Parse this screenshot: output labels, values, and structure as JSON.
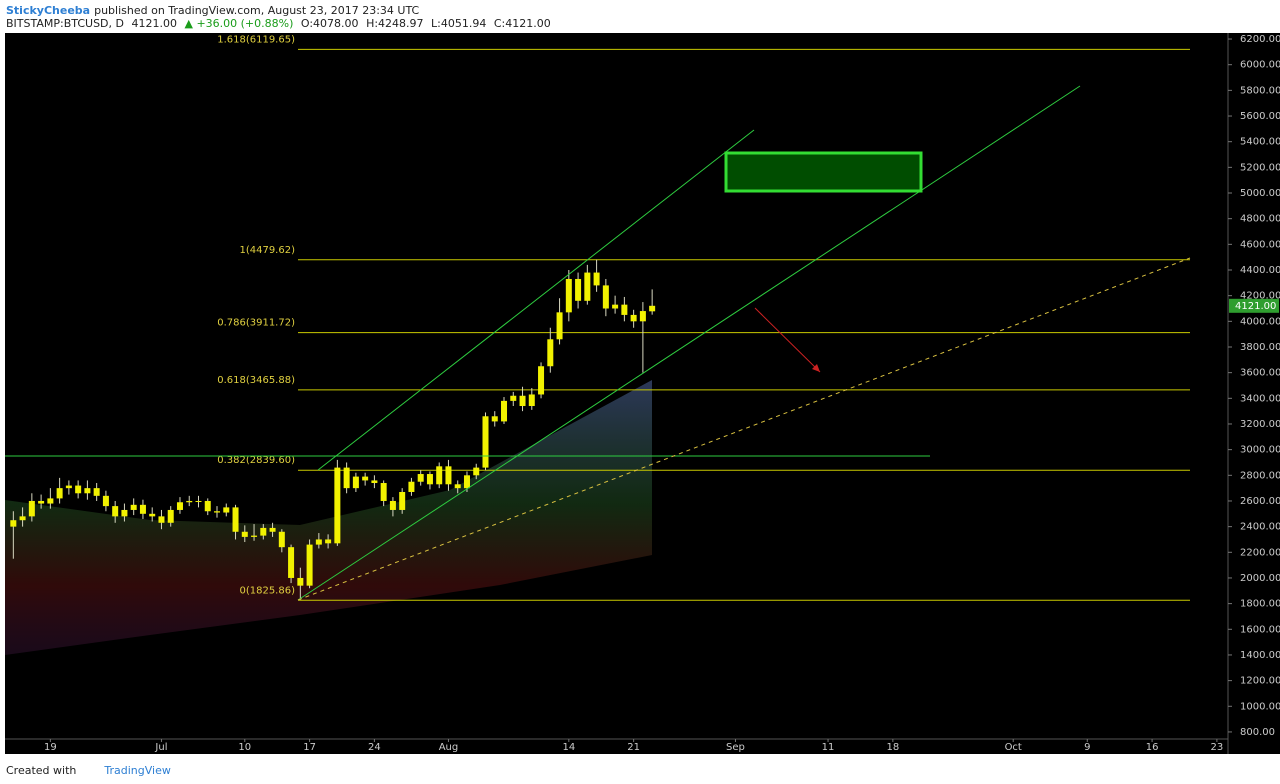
{
  "header": {
    "author": "StickyCheeba",
    "published": "published on TradingView.com, August 23, 2017 23:34 UTC",
    "symbol": "BITSTAMP:BTCUSD, D",
    "last": "4121.00",
    "change": "▲ +36.00 (+0.88%)",
    "ohlc": [
      "O:4078.00",
      "H:4248.97",
      "L:4051.94",
      "C:4121.00"
    ]
  },
  "footer": {
    "created": "Created with",
    "brand": "TradingView"
  },
  "chart_data": {
    "type": "candlestick",
    "color": "#f2f200",
    "x": [
      -4,
      -3,
      -2,
      -1,
      0,
      1,
      2,
      3,
      4,
      5,
      6,
      7,
      8,
      9,
      10,
      11,
      12,
      13,
      14,
      15,
      16,
      17,
      18,
      19,
      20,
      21,
      22,
      23,
      24,
      25,
      26,
      27,
      28,
      29,
      30,
      31,
      32,
      33,
      34,
      35,
      36,
      37,
      38,
      39,
      40,
      41,
      42,
      43,
      44,
      45,
      46,
      47,
      48,
      49,
      50,
      51,
      52,
      53,
      54,
      55,
      56,
      57,
      58,
      59,
      60,
      61,
      62,
      63,
      64,
      65
    ],
    "open": [
      2400,
      2450,
      2480,
      2600,
      2580,
      2620,
      2700,
      2720,
      2660,
      2700,
      2640,
      2560,
      2480,
      2530,
      2570,
      2500,
      2480,
      2430,
      2530,
      2590,
      2600,
      2600,
      2520,
      2510,
      2550,
      2360,
      2320,
      2330,
      2390,
      2360,
      2240,
      2000,
      1940,
      2260,
      2300,
      2270,
      2860,
      2700,
      2790,
      2760,
      2740,
      2600,
      2530,
      2670,
      2750,
      2810,
      2730,
      2870,
      2730,
      2700,
      2800,
      2860,
      3260,
      3220,
      3380,
      3420,
      3340,
      3430,
      3650,
      3860,
      4070,
      4330,
      4160,
      4380,
      4280,
      4100,
      4130,
      4050,
      4000,
      4078
    ],
    "high": [
      2520,
      2550,
      2660,
      2650,
      2700,
      2780,
      2760,
      2760,
      2760,
      2740,
      2680,
      2600,
      2580,
      2620,
      2610,
      2550,
      2530,
      2560,
      2630,
      2640,
      2640,
      2620,
      2560,
      2580,
      2570,
      2410,
      2420,
      2420,
      2430,
      2380,
      2260,
      2080,
      2300,
      2350,
      2340,
      2920,
      2900,
      2820,
      2820,
      2800,
      2760,
      2630,
      2700,
      2780,
      2840,
      2830,
      2900,
      2920,
      2760,
      2830,
      2890,
      3290,
      3300,
      3410,
      3450,
      3490,
      3480,
      3680,
      3950,
      4180,
      4400,
      4380,
      4440,
      4480,
      4330,
      4200,
      4190,
      4090,
      4150,
      4248.97
    ],
    "low": [
      2150,
      2400,
      2440,
      2540,
      2540,
      2580,
      2650,
      2620,
      2610,
      2600,
      2520,
      2430,
      2440,
      2490,
      2460,
      2440,
      2380,
      2400,
      2500,
      2560,
      2550,
      2490,
      2470,
      2480,
      2300,
      2280,
      2290,
      2300,
      2320,
      2200,
      1960,
      1830,
      1920,
      2230,
      2230,
      2250,
      2660,
      2670,
      2720,
      2700,
      2560,
      2480,
      2500,
      2640,
      2720,
      2690,
      2700,
      2680,
      2660,
      2670,
      2770,
      2840,
      3180,
      3200,
      3340,
      3300,
      3310,
      3400,
      3600,
      3820,
      4000,
      4100,
      4130,
      4230,
      4040,
      4060,
      4000,
      3950,
      3600,
      4051.94
    ],
    "close": [
      2450,
      2480,
      2600,
      2580,
      2620,
      2700,
      2720,
      2660,
      2700,
      2640,
      2560,
      2480,
      2530,
      2570,
      2500,
      2480,
      2430,
      2530,
      2590,
      2600,
      2600,
      2520,
      2510,
      2550,
      2360,
      2320,
      2330,
      2390,
      2360,
      2240,
      2000,
      1940,
      2260,
      2300,
      2270,
      2860,
      2700,
      2790,
      2760,
      2740,
      2600,
      2530,
      2670,
      2750,
      2810,
      2730,
      2870,
      2730,
      2700,
      2800,
      2860,
      3260,
      3220,
      3380,
      3420,
      3340,
      3430,
      3650,
      3860,
      4070,
      4330,
      4160,
      4380,
      4280,
      4100,
      4130,
      4050,
      4000,
      4080,
      4121
    ],
    "last_price": {
      "value": 4121,
      "label": "4121.00"
    },
    "fib_levels": {
      "values": [
        6119.65,
        4479.62,
        3911.72,
        3465.88,
        2839.6,
        1825.86
      ],
      "value_labels": [
        "1.618(6119.65)",
        "1(4479.62)",
        "0.786(3911.72)",
        "0.618(3465.88)",
        "0.382(2839.60)",
        "0(1825.86)"
      ],
      "color": "#c9c900"
    },
    "xlim": [
      -4.9,
      127.2
    ],
    "xticks": [
      {
        "value": 0,
        "label": "19"
      },
      {
        "value": 12,
        "label": "Jul"
      },
      {
        "value": 21,
        "label": "10"
      },
      {
        "value": 28,
        "label": "17"
      },
      {
        "value": 35,
        "label": "24"
      },
      {
        "value": 43,
        "label": "Aug"
      },
      {
        "value": 56,
        "label": "14"
      },
      {
        "value": 63,
        "label": "21"
      },
      {
        "value": 74,
        "label": "Sep"
      },
      {
        "value": 84,
        "label": "11"
      },
      {
        "value": 91,
        "label": "18"
      },
      {
        "value": 104,
        "label": "Oct"
      },
      {
        "value": 112,
        "label": "9"
      },
      {
        "value": 119,
        "label": "16"
      },
      {
        "value": 126,
        "label": "23"
      }
    ],
    "ylim": [
      745,
      6247
    ],
    "yticks": [
      {
        "value": 800,
        "label": "800.00"
      },
      {
        "value": 1000,
        "label": "1000.00"
      },
      {
        "value": 1200,
        "label": "1200.00"
      },
      {
        "value": 1400,
        "label": "1400.00"
      },
      {
        "value": 1600,
        "label": "1600.00"
      },
      {
        "value": 1800,
        "label": "1800.00"
      },
      {
        "value": 2000,
        "label": "2000.00"
      },
      {
        "value": 2200,
        "label": "2200.00"
      },
      {
        "value": 2400,
        "label": "2400.00"
      },
      {
        "value": 2600,
        "label": "2600.00"
      },
      {
        "value": 2800,
        "label": "2800.00"
      },
      {
        "value": 3000,
        "label": "3000.00"
      },
      {
        "value": 3200,
        "label": "3200.00"
      },
      {
        "value": 3400,
        "label": "3400.00"
      },
      {
        "value": 3600,
        "label": "3600.00"
      },
      {
        "value": 3800,
        "label": "3800.00"
      },
      {
        "value": 4000,
        "label": "4000.00"
      },
      {
        "value": 4200,
        "label": "4200.00"
      },
      {
        "value": 4400,
        "label": "4400.00"
      },
      {
        "value": 4600,
        "label": "4600.00"
      },
      {
        "value": 4800,
        "label": "4800.00"
      },
      {
        "value": 5000,
        "label": "5000.00"
      },
      {
        "value": 5200,
        "label": "5200.00"
      },
      {
        "value": 5400,
        "label": "5400.00"
      },
      {
        "value": 5600,
        "label": "5600.00"
      },
      {
        "value": 5800,
        "label": "5800.00"
      },
      {
        "value": 6000,
        "label": "6000.00"
      },
      {
        "value": 6200,
        "label": "6200.00"
      }
    ],
    "grid": false
  }
}
